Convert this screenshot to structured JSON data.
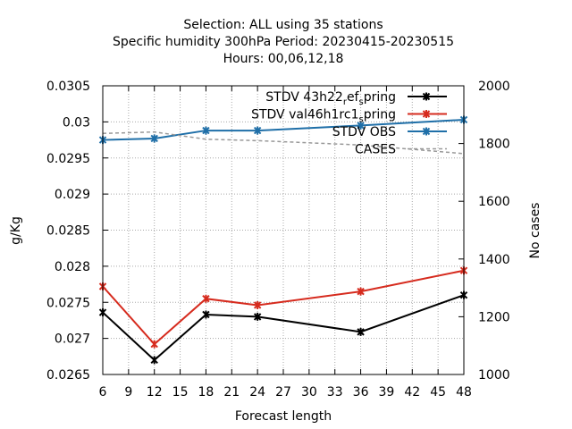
{
  "chart_data": {
    "type": "line",
    "title_lines": [
      "Selection: ALL using    35 stations",
      "Specific humidity 300hPa   Period: 20230415-20230515",
      "Hours:  00,06,12,18"
    ],
    "xlabel": "Forecast length",
    "ylabel": "g/Kg",
    "y2label": "No cases",
    "xlim": [
      6,
      48
    ],
    "ylim": [
      0.0265,
      0.0305
    ],
    "y2lim": [
      1000,
      2000
    ],
    "x_ticks": [
      6,
      9,
      12,
      15,
      18,
      21,
      24,
      27,
      30,
      33,
      36,
      39,
      42,
      45,
      48
    ],
    "y_ticks": [
      "0.0265",
      "0.027",
      "0.0275",
      "0.028",
      "0.0285",
      "0.029",
      "0.0295",
      "0.03",
      "0.0305"
    ],
    "y2_ticks": [
      "1000",
      "1200",
      "1400",
      "1600",
      "1800",
      "2000"
    ],
    "legend_position": "top-right",
    "grid": true,
    "series": [
      {
        "name": "STDV 43h22_ref_spring",
        "label_parts": [
          "STDV 43h22",
          "r",
          "ef",
          "s",
          "pring"
        ],
        "color": "#000000",
        "axis": "left",
        "x": [
          6,
          12,
          18,
          24,
          36,
          48
        ],
        "values": [
          0.02736,
          0.0267,
          0.02733,
          0.0273,
          0.02709,
          0.0276
        ]
      },
      {
        "name": "STDV val46h1rc1_spring",
        "label_parts": [
          "STDV val46h1rc1",
          "s",
          "pring"
        ],
        "color": "#d62b1e",
        "axis": "left",
        "x": [
          6,
          12,
          18,
          24,
          36,
          48
        ],
        "values": [
          0.02772,
          0.02692,
          0.02755,
          0.02746,
          0.02765,
          0.02794
        ]
      },
      {
        "name": "STDV OBS",
        "color": "#1f6fa8",
        "axis": "left",
        "x": [
          6,
          12,
          18,
          24,
          36,
          48
        ],
        "values": [
          0.02975,
          0.02977,
          0.02988,
          0.02988,
          0.02995,
          0.03003
        ]
      },
      {
        "name": "CASES",
        "color": "#999999",
        "axis": "right",
        "dashed": true,
        "x": [
          6,
          12,
          18,
          24,
          36,
          48
        ],
        "values": [
          1835,
          1840,
          1815,
          1810,
          1795,
          1765
        ]
      }
    ]
  }
}
